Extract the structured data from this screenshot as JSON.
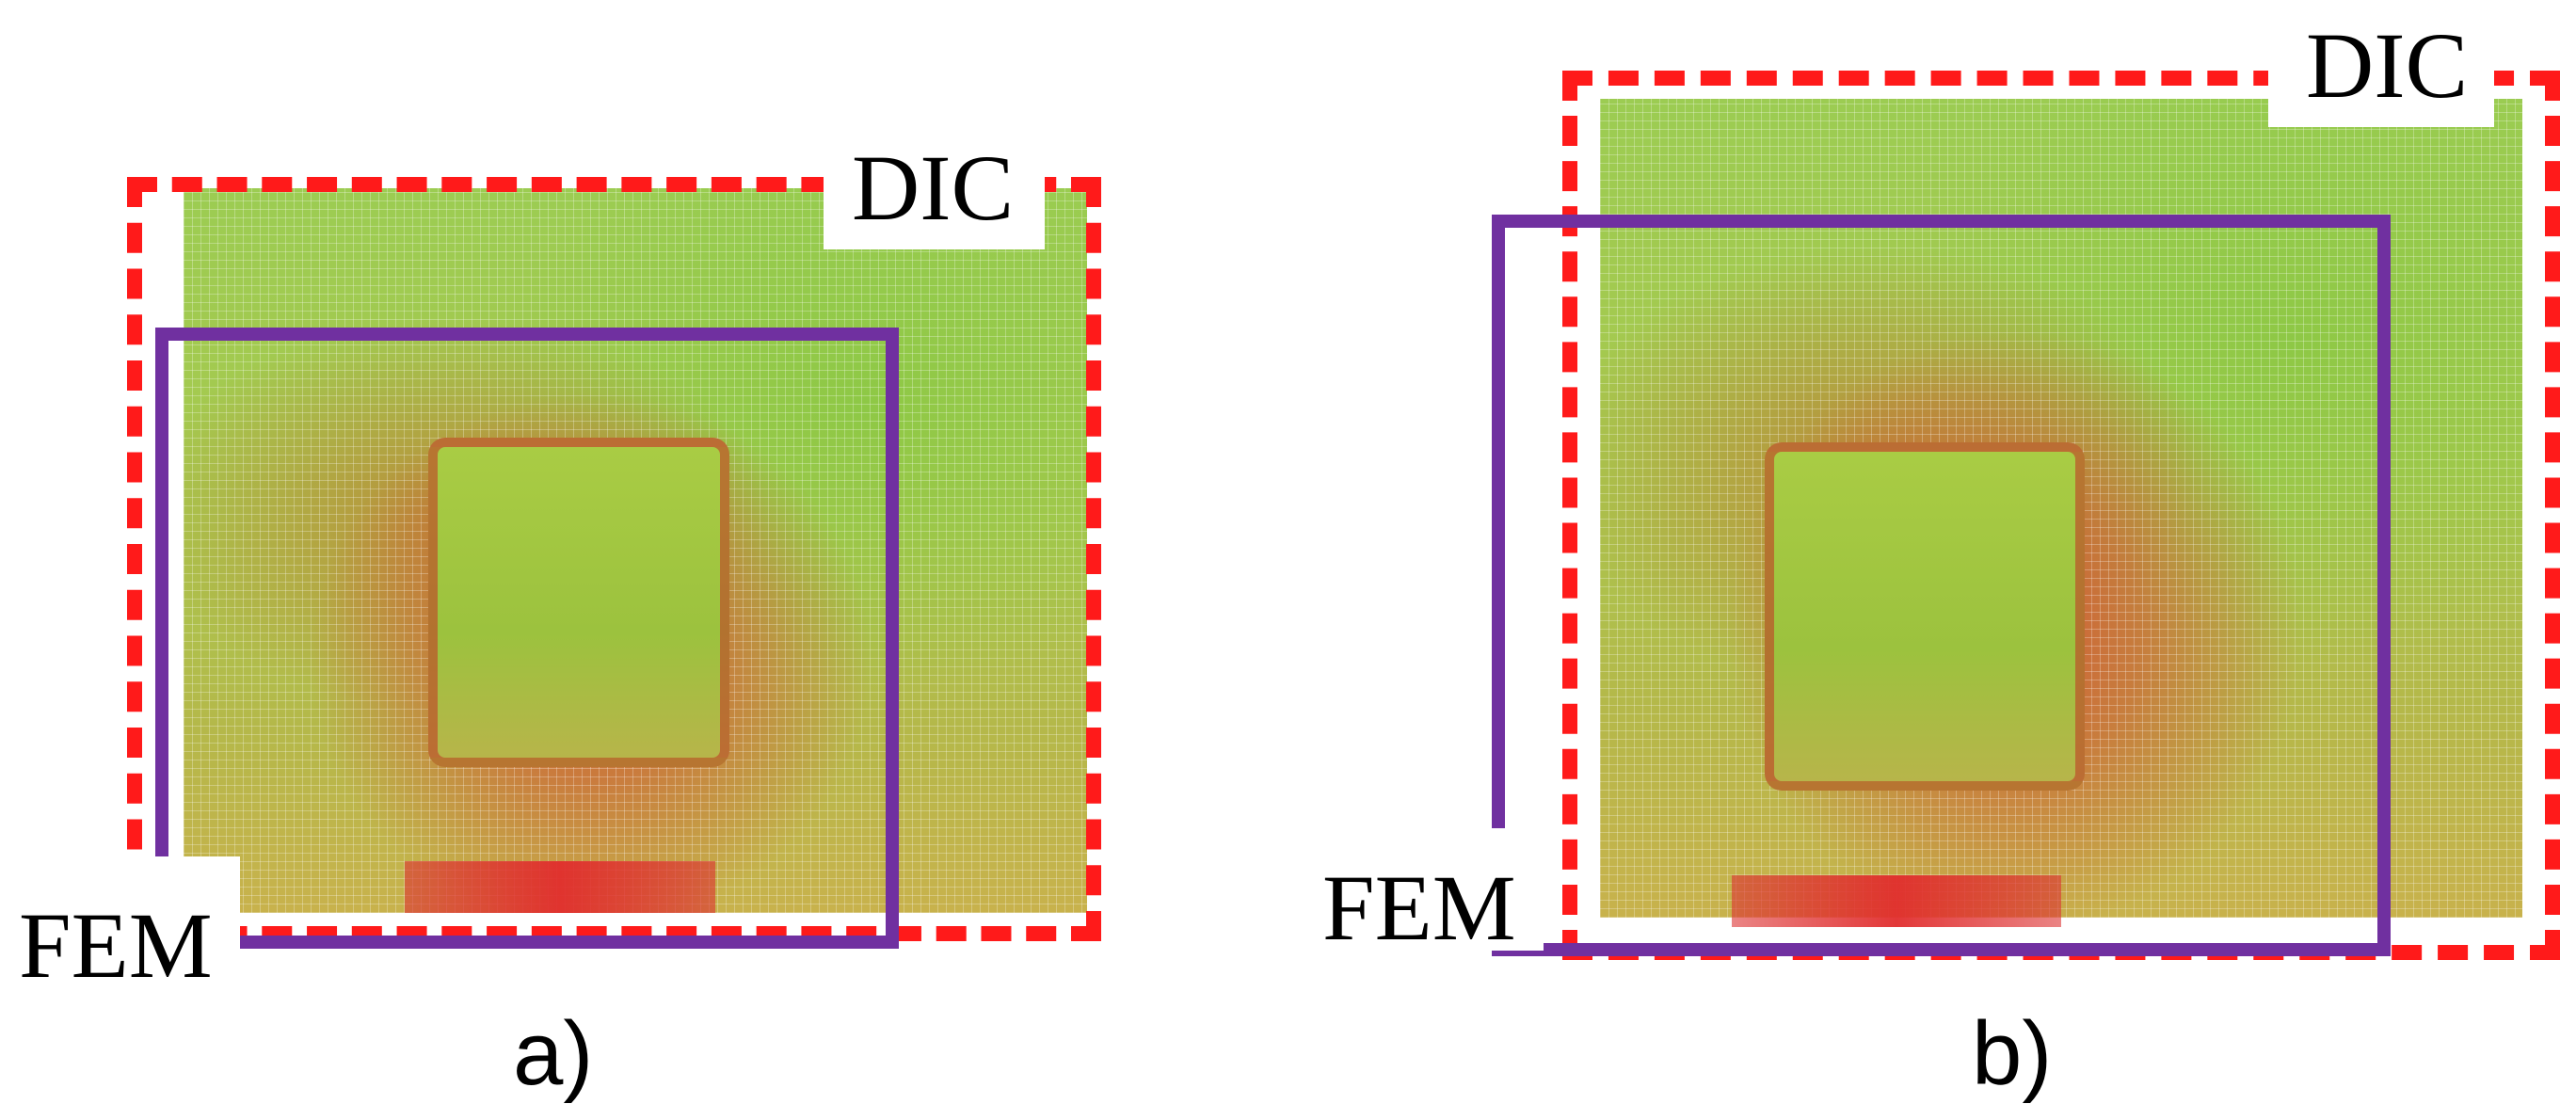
{
  "panels": [
    {
      "caption": "a)",
      "dic_label": "DIC",
      "fem_label": "FEM"
    },
    {
      "caption": "b)",
      "dic_label": "DIC",
      "fem_label": "FEM"
    }
  ],
  "colors": {
    "dic_outline": "#ff1a1a",
    "fem_outline": "#7030a0",
    "high_strain": "#dc3a32",
    "low_strain": "#9ccc52"
  }
}
